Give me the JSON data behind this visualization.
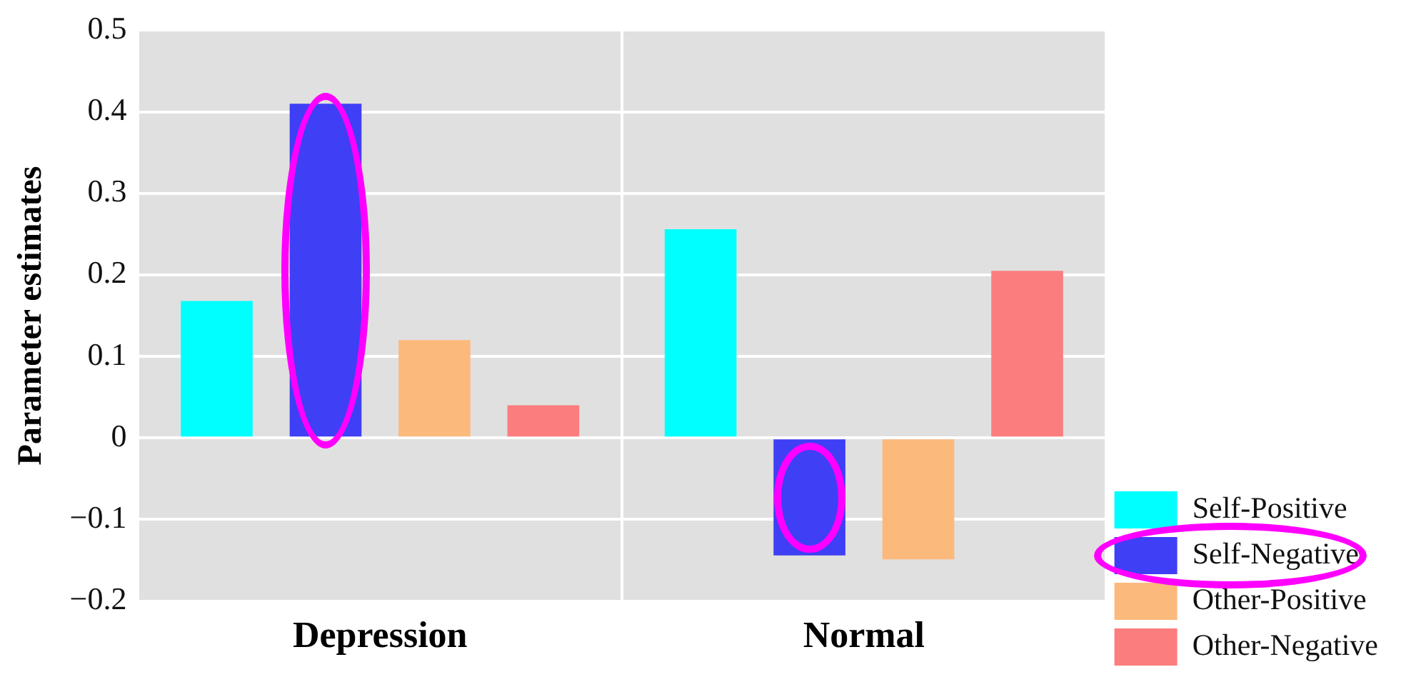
{
  "chart_data": {
    "type": "bar",
    "ylabel": "Parameter estimates",
    "categories": [
      "Depression",
      "Normal"
    ],
    "series": [
      {
        "name": "Self-Positive",
        "color": "#00ffff",
        "values": [
          0.168,
          0.256
        ]
      },
      {
        "name": "Self-Negative",
        "color": "#3f3ff5",
        "values": [
          0.41,
          -0.144
        ]
      },
      {
        "name": "Other-Positive",
        "color": "#fcb97c",
        "values": [
          0.12,
          -0.149
        ]
      },
      {
        "name": "Other-Negative",
        "color": "#fc7d7d",
        "values": [
          0.04,
          0.205
        ]
      }
    ],
    "ylim": [
      -0.2,
      0.5
    ],
    "yticks": [
      {
        "value": -0.2,
        "label": "−0.2"
      },
      {
        "value": -0.1,
        "label": "−0.1"
      },
      0,
      0.1,
      0.2,
      0.3,
      0.4,
      0.5
    ],
    "grid": true,
    "legend": "bottom right"
  }
}
